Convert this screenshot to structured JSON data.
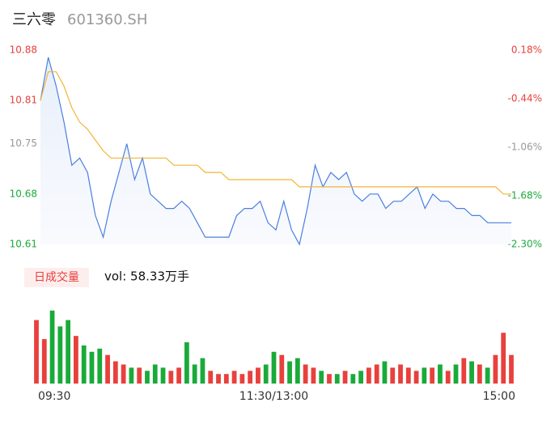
{
  "header": {
    "title": "三六零",
    "subtitle": "601360.SH"
  },
  "chart_data": [
    {
      "type": "line",
      "x": [
        0,
        4,
        8,
        12,
        16,
        20,
        24,
        28,
        32,
        36,
        40,
        44,
        48,
        52,
        56,
        60,
        64,
        68,
        72,
        76,
        80,
        84,
        88,
        92,
        96,
        100,
        104,
        108,
        112,
        116,
        120,
        124,
        128,
        132,
        136,
        140,
        144,
        148,
        152,
        156,
        160,
        164,
        168,
        172,
        176,
        180,
        184,
        188,
        192,
        196,
        200,
        204,
        208,
        212,
        216,
        220,
        224,
        228,
        232,
        236,
        240
      ],
      "xlim": [
        0,
        240
      ],
      "ylim": [
        10.61,
        10.88
      ],
      "yticks": [
        10.88,
        10.81,
        10.75,
        10.68,
        10.61
      ],
      "y2lim": [
        -2.3,
        0.18
      ],
      "y2ticks": [
        {
          "value": 0.18,
          "label": "0.18%"
        },
        {
          "value": -0.44,
          "label": "-0.44%"
        },
        {
          "value": -1.06,
          "label": "-1.06%"
        },
        {
          "value": -1.68,
          "label": "-1.68%"
        },
        {
          "value": -2.3,
          "label": "-2.30%"
        }
      ],
      "tick_colors": [
        "#e8403c",
        "#e8403c",
        "#999999",
        "#1aaa3a",
        "#1aaa3a"
      ],
      "series": [
        {
          "name": "price",
          "color": "#4a7fe0",
          "values": [
            10.81,
            10.87,
            10.83,
            10.78,
            10.72,
            10.73,
            10.71,
            10.65,
            10.62,
            10.67,
            10.71,
            10.75,
            10.7,
            10.73,
            10.68,
            10.67,
            10.66,
            10.66,
            10.67,
            10.66,
            10.64,
            10.62,
            10.62,
            10.62,
            10.62,
            10.65,
            10.66,
            10.66,
            10.67,
            10.64,
            10.63,
            10.67,
            10.63,
            10.61,
            10.66,
            10.72,
            10.69,
            10.71,
            10.7,
            10.71,
            10.68,
            10.67,
            10.68,
            10.68,
            10.66,
            10.67,
            10.67,
            10.68,
            10.69,
            10.66,
            10.68,
            10.67,
            10.67,
            10.66,
            10.66,
            10.65,
            10.65,
            10.64,
            10.64,
            10.64,
            10.64
          ]
        },
        {
          "name": "average",
          "color": "#f2b535",
          "values": [
            10.81,
            10.85,
            10.85,
            10.83,
            10.8,
            10.78,
            10.77,
            10.755,
            10.74,
            10.73,
            10.73,
            10.73,
            10.73,
            10.73,
            10.73,
            10.73,
            10.73,
            10.72,
            10.72,
            10.72,
            10.72,
            10.71,
            10.71,
            10.71,
            10.7,
            10.7,
            10.7,
            10.7,
            10.7,
            10.7,
            10.7,
            10.7,
            10.7,
            10.69,
            10.69,
            10.69,
            10.69,
            10.69,
            10.69,
            10.69,
            10.69,
            10.69,
            10.69,
            10.69,
            10.69,
            10.69,
            10.69,
            10.69,
            10.69,
            10.69,
            10.69,
            10.69,
            10.69,
            10.69,
            10.69,
            10.69,
            10.69,
            10.69,
            10.69,
            10.68,
            10.68
          ]
        }
      ]
    },
    {
      "type": "volume",
      "legend": "日成交量",
      "annotation": "vol: 58.33万手",
      "x": [
        0,
        4,
        8,
        12,
        16,
        20,
        24,
        28,
        32,
        36,
        40,
        44,
        48,
        52,
        56,
        60,
        64,
        68,
        72,
        76,
        80,
        84,
        88,
        92,
        96,
        100,
        104,
        108,
        112,
        116,
        120,
        124,
        128,
        132,
        136,
        140,
        144,
        148,
        152,
        156,
        160,
        164,
        168,
        172,
        176,
        180,
        184,
        188,
        192,
        196,
        200,
        204,
        208,
        212,
        216,
        220,
        224,
        228,
        232,
        236,
        240
      ],
      "xlim": [
        0,
        240
      ],
      "xticks": [
        {
          "value": 0,
          "label": "09:30"
        },
        {
          "value": 120,
          "label": "11:30/13:00"
        },
        {
          "value": 240,
          "label": "15:00"
        }
      ],
      "ylim": [
        0,
        2.6
      ],
      "up_color": "#e8403c",
      "down_color": "#1aaa3a",
      "values": [
        2.0,
        1.4,
        2.3,
        1.8,
        2.0,
        1.5,
        1.2,
        1.0,
        1.1,
        0.9,
        0.7,
        0.6,
        0.5,
        0.5,
        0.4,
        0.6,
        0.5,
        0.4,
        0.5,
        1.3,
        0.6,
        0.8,
        0.4,
        0.3,
        0.3,
        0.4,
        0.3,
        0.4,
        0.5,
        0.6,
        1.0,
        0.9,
        0.7,
        0.8,
        0.6,
        0.5,
        0.4,
        0.3,
        0.3,
        0.4,
        0.3,
        0.4,
        0.5,
        0.6,
        0.7,
        0.5,
        0.6,
        0.5,
        0.4,
        0.5,
        0.5,
        0.6,
        0.4,
        0.6,
        0.8,
        0.7,
        0.6,
        0.5,
        0.9,
        1.6,
        0.9
      ]
    }
  ]
}
